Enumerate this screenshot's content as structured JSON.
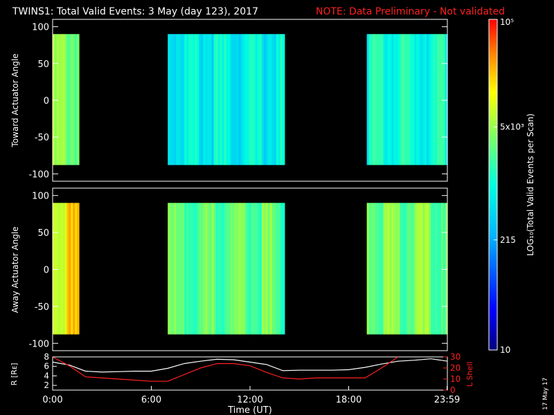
{
  "title": {
    "main": "TWINS1: Total Valid Events:  3 May (day 123), 2017",
    "note": "NOTE: Data Preliminary - Not validated",
    "note_color": "#ff2020"
  },
  "stamp": "17 May 17",
  "chart_data": [
    {
      "type": "heatmap",
      "ylabel": "Toward Actuator Angle",
      "ylim": [
        -110,
        110
      ],
      "y_ticks": [
        "100",
        "50",
        "0",
        "-50",
        "-100"
      ],
      "y_tick_values": [
        100,
        50,
        0,
        -50,
        -100
      ],
      "y_range": [
        -88,
        90
      ],
      "xlim_hours": [
        0,
        24
      ],
      "segments": [
        {
          "start_hour": 0.0,
          "end_hour": 1.6,
          "log10_level": 3.75
        },
        {
          "start_hour": 7.0,
          "end_hour": 14.1,
          "log10_level": 3.05
        },
        {
          "start_hour": 19.1,
          "end_hour": 24.0,
          "log10_level": 3.2
        }
      ]
    },
    {
      "type": "heatmap",
      "ylabel": "Away Actuator Angle",
      "ylim": [
        -110,
        110
      ],
      "y_ticks": [
        "100",
        "50",
        "0",
        "-50",
        "-100"
      ],
      "y_tick_values": [
        100,
        50,
        0,
        -50,
        -100
      ],
      "y_range": [
        -88,
        90
      ],
      "xlim_hours": [
        0,
        24
      ],
      "segments": [
        {
          "start_hour": 0.0,
          "end_hour": 1.6,
          "log10_level": 4.3
        },
        {
          "start_hour": 7.0,
          "end_hour": 14.1,
          "log10_level": 3.6
        },
        {
          "start_hour": 19.1,
          "end_hour": 24.0,
          "log10_level": 3.7
        }
      ]
    },
    {
      "type": "line",
      "ylabel_left": "R [Rᴇ]",
      "ylabel_right": "L Shell",
      "ylim_left": [
        1,
        8
      ],
      "ylim_right": [
        0,
        30
      ],
      "y_ticks_left": [
        "8",
        "6",
        "4",
        "2"
      ],
      "y_tick_values_left": [
        8,
        6,
        4,
        2
      ],
      "y_ticks_right": [
        "30",
        "20",
        "10",
        "0"
      ],
      "y_tick_values_right": [
        30,
        20,
        10,
        0
      ],
      "xlabel": "Time (UT)",
      "x_ticks": [
        "0:00",
        "6:00",
        "12:00",
        "18:00",
        "23:59"
      ],
      "x_tick_hours": [
        0,
        6,
        12,
        18,
        23.98
      ],
      "series": [
        {
          "axis": "left",
          "color": "#ffffff",
          "x": [
            0,
            1,
            2,
            3,
            4,
            5,
            6,
            7,
            8,
            9,
            10,
            11,
            12,
            13,
            14,
            15,
            16,
            17,
            18,
            19,
            20,
            21,
            22,
            23,
            24
          ],
          "y": [
            6.9,
            6.3,
            5.0,
            4.8,
            4.9,
            5.0,
            5.0,
            5.6,
            6.6,
            7.1,
            7.5,
            7.4,
            6.9,
            6.4,
            5.1,
            5.2,
            5.2,
            5.2,
            5.3,
            5.8,
            6.5,
            7.1,
            7.3,
            7.6,
            7.1
          ]
        },
        {
          "axis": "right",
          "color": "#ff2020",
          "x": [
            0,
            1,
            2,
            3,
            4,
            5,
            6,
            7,
            8,
            9,
            10,
            11,
            12,
            13,
            14,
            15,
            16,
            17,
            18,
            19,
            20,
            21
          ],
          "y": [
            30,
            22,
            12,
            11,
            10,
            9,
            8,
            8,
            14,
            20,
            24,
            24,
            22,
            16,
            11,
            10,
            11,
            11,
            11,
            11,
            20,
            30
          ]
        }
      ]
    }
  ],
  "colorbar": {
    "ylabel": "LOG₁₀(Total Valid Events per Scan)",
    "ticks": [
      "10⁵",
      "5x10³",
      "215",
      "10"
    ],
    "tick_log10": [
      5,
      3.699,
      2.332,
      1
    ],
    "range_log10": [
      1,
      5
    ]
  }
}
